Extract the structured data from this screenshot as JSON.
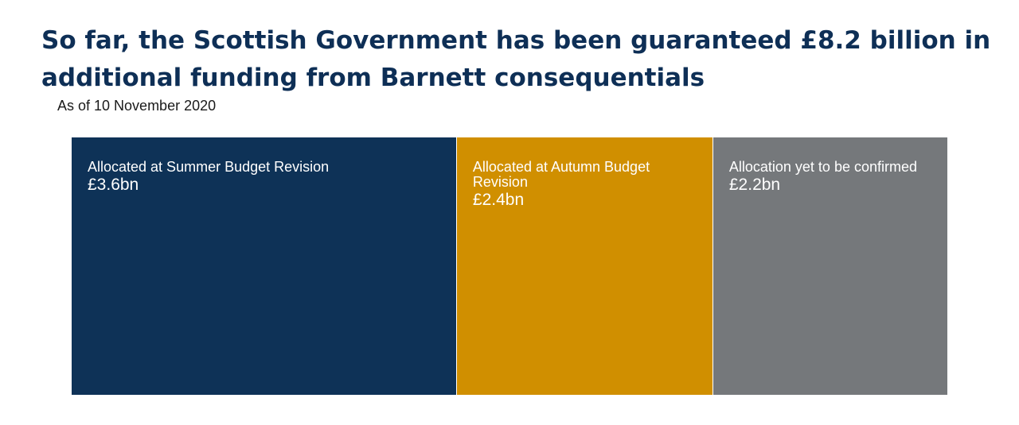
{
  "chart_data": {
    "type": "bar",
    "orientation": "horizontal-stacked",
    "title": "So far, the Scottish Government has been guaranteed £8.2 billion in additional funding from Barnett consequentials",
    "subtitle": "As of 10 November 2020",
    "unit": "£bn",
    "total": 8.2,
    "segments": [
      {
        "label": "Allocated at Summer Budget Revision",
        "value": 3.6,
        "value_label": "£3.6bn",
        "color": "#0e3257"
      },
      {
        "label": "Allocated at Autumn Budget Revision",
        "value": 2.4,
        "value_label": "£2.4bn",
        "color": "#d08f00"
      },
      {
        "label": "Allocation yet to be confirmed",
        "value": 2.2,
        "value_label": "£2.2bn",
        "color": "#75787b"
      }
    ],
    "legend": "none",
    "grid": false
  }
}
